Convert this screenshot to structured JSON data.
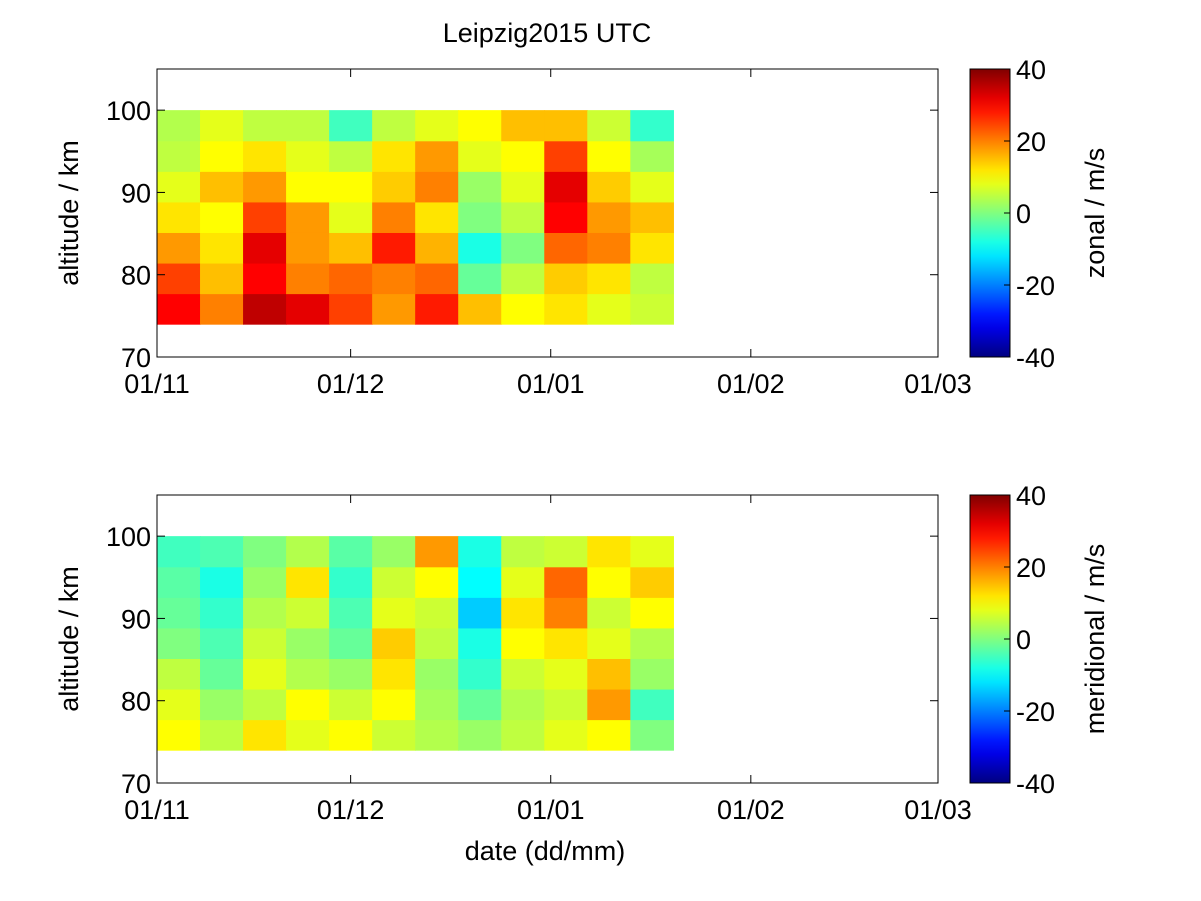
{
  "figure": {
    "title": "Leipzig2015 UTC",
    "xlabel": "date (dd/mm)"
  },
  "chart_data": [
    {
      "type": "heatmap",
      "panel": "top",
      "title": "Leipzig2015 UTC",
      "xlabel": "",
      "ylabel": "altitude / km",
      "colorbar_label": "zonal / m/s",
      "xlim": [
        "2015-11-01",
        "2016-03-01"
      ],
      "xticks": [
        "01/11",
        "01/12",
        "01/01",
        "01/02",
        "01/03"
      ],
      "ylim": [
        70,
        105
      ],
      "yticks": [
        70,
        80,
        90,
        100
      ],
      "clim": [
        -40,
        40
      ],
      "cticks": [
        -40,
        -20,
        0,
        20,
        40
      ],
      "colormap": "jet",
      "data_coverage": {
        "start": "2015-11-01",
        "end": "2016-01-20",
        "altitude_range_km": [
          74,
          100
        ]
      },
      "x_dates": [
        "2015-11-04",
        "2015-11-11",
        "2015-11-18",
        "2015-11-25",
        "2015-12-02",
        "2015-12-09",
        "2015-12-16",
        "2015-12-23",
        "2015-12-30",
        "2016-01-06",
        "2016-01-13",
        "2016-01-20"
      ],
      "y_altitudes_km": [
        76,
        80,
        84,
        88,
        92,
        96,
        100
      ],
      "values_m_per_s": [
        [
          30,
          20,
          35,
          32,
          25,
          18,
          28,
          15,
          10,
          12,
          8,
          6
        ],
        [
          25,
          15,
          30,
          20,
          22,
          20,
          22,
          -2,
          5,
          14,
          12,
          5
        ],
        [
          18,
          12,
          32,
          18,
          15,
          28,
          16,
          -8,
          0,
          22,
          20,
          12
        ],
        [
          12,
          10,
          25,
          18,
          8,
          20,
          12,
          0,
          5,
          30,
          18,
          15
        ],
        [
          8,
          15,
          18,
          10,
          10,
          14,
          20,
          2,
          8,
          32,
          14,
          8
        ],
        [
          5,
          10,
          12,
          8,
          5,
          12,
          18,
          8,
          10,
          25,
          10,
          3
        ],
        [
          4,
          8,
          5,
          5,
          -5,
          5,
          8,
          10,
          15,
          15,
          6,
          -6
        ]
      ]
    },
    {
      "type": "heatmap",
      "panel": "bottom",
      "xlabel": "date (dd/mm)",
      "ylabel": "altitude / km",
      "colorbar_label": "meridional / m/s",
      "xlim": [
        "2015-11-01",
        "2016-03-01"
      ],
      "xticks": [
        "01/11",
        "01/12",
        "01/01",
        "01/02",
        "01/03"
      ],
      "ylim": [
        70,
        105
      ],
      "yticks": [
        70,
        80,
        90,
        100
      ],
      "clim": [
        -40,
        40
      ],
      "cticks": [
        -40,
        -20,
        0,
        20,
        40
      ],
      "colormap": "jet",
      "data_coverage": {
        "start": "2015-11-01",
        "end": "2016-01-20",
        "altitude_range_km": [
          74,
          100
        ]
      },
      "x_dates": [
        "2015-11-04",
        "2015-11-11",
        "2015-11-18",
        "2015-11-25",
        "2015-12-02",
        "2015-12-09",
        "2015-12-16",
        "2015-12-23",
        "2015-12-30",
        "2016-01-06",
        "2016-01-13",
        "2016-01-20"
      ],
      "y_altitudes_km": [
        76,
        80,
        84,
        88,
        92,
        96,
        100
      ],
      "values_m_per_s": [
        [
          10,
          5,
          12,
          8,
          10,
          6,
          4,
          2,
          5,
          8,
          10,
          0
        ],
        [
          8,
          2,
          5,
          10,
          6,
          10,
          3,
          -2,
          4,
          6,
          18,
          -5
        ],
        [
          5,
          -2,
          8,
          4,
          2,
          12,
          2,
          -6,
          6,
          8,
          15,
          2
        ],
        [
          0,
          -4,
          6,
          2,
          -2,
          14,
          5,
          -8,
          10,
          12,
          8,
          4
        ],
        [
          -2,
          -6,
          4,
          6,
          -4,
          8,
          6,
          -14,
          12,
          20,
          6,
          10
        ],
        [
          -3,
          -8,
          2,
          12,
          -6,
          6,
          10,
          -10,
          8,
          22,
          10,
          14
        ],
        [
          -5,
          -4,
          0,
          4,
          -3,
          2,
          18,
          -8,
          5,
          6,
          12,
          8
        ]
      ]
    }
  ]
}
